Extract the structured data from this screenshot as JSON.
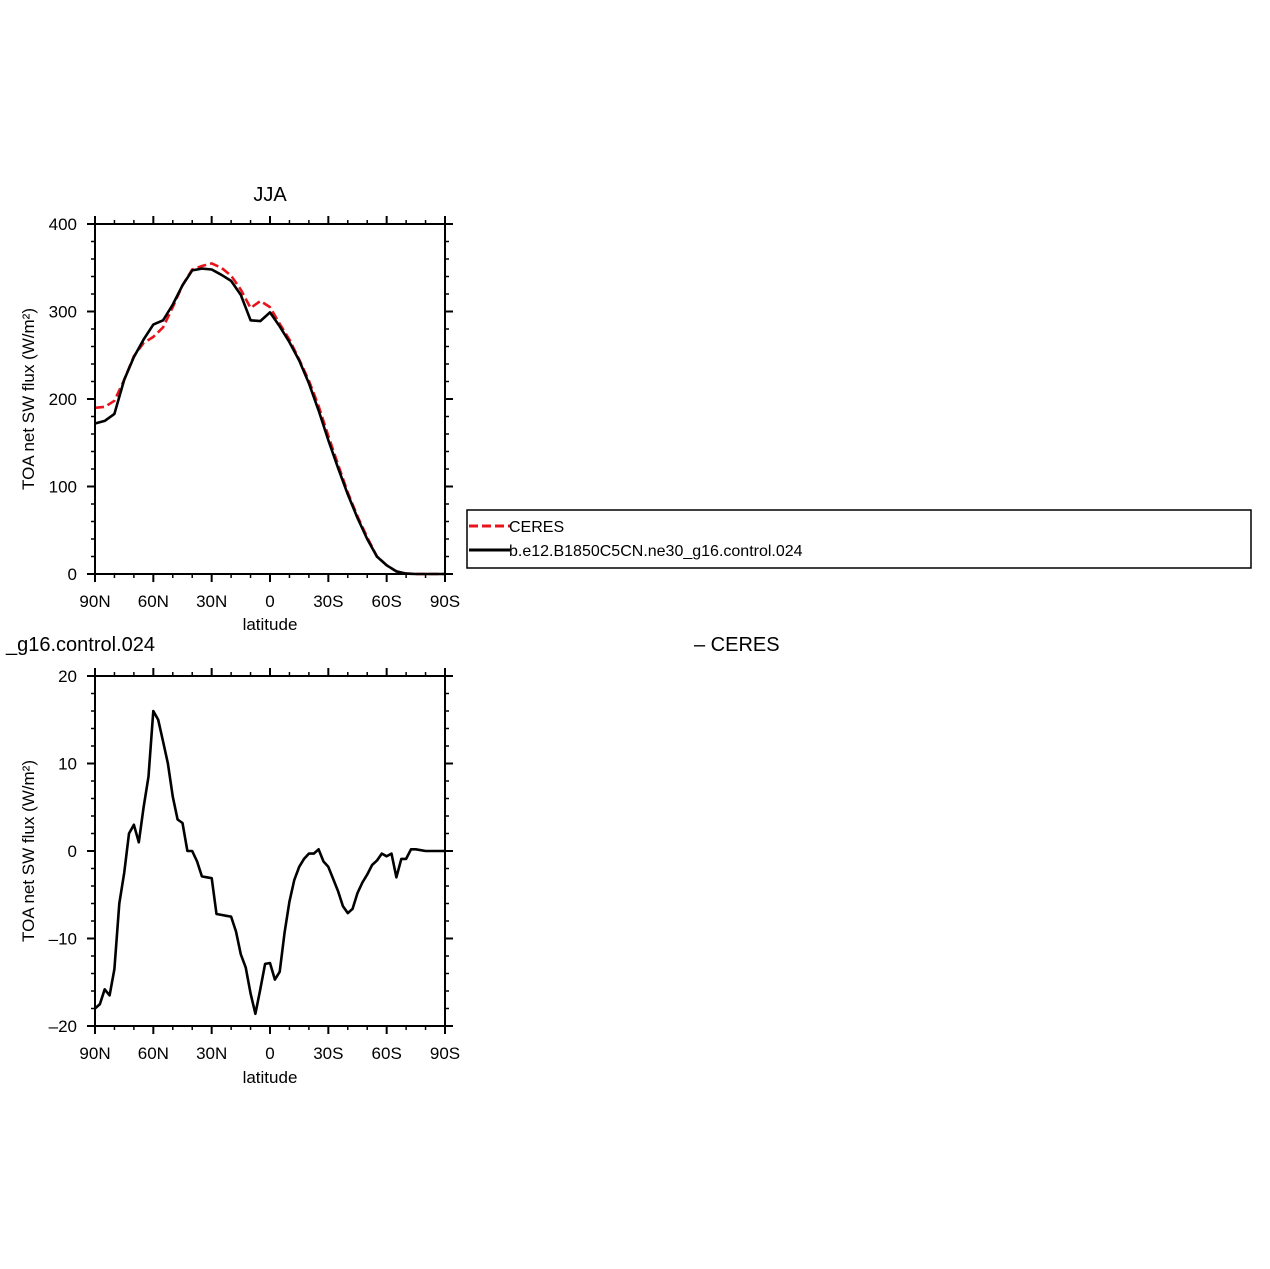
{
  "chart_data": [
    {
      "type": "line",
      "title": "JJA",
      "xlabel": "latitude",
      "ylabel": "TOA net SW flux (W/m²)",
      "x_axis": {
        "min": 90,
        "max": -90,
        "ticks": [
          90,
          60,
          30,
          0,
          -30,
          -60,
          -90
        ],
        "tick_labels": [
          "90N",
          "60N",
          "30N",
          "0",
          "30S",
          "60S",
          "90S"
        ]
      },
      "y_axis": {
        "min": 0,
        "max": 400,
        "ticks": [
          0,
          100,
          200,
          300,
          400
        ],
        "tick_labels": [
          "0",
          "100",
          "200",
          "300",
          "400"
        ]
      },
      "grid": false,
      "legend": {
        "placement": "right, outside plot",
        "entries": [
          "CERES",
          "b.e12.B1850C5CN.ne30_g16.control.024"
        ]
      },
      "series": [
        {
          "name": "CERES",
          "color": "#e8141c",
          "dashed": true,
          "x": [
            90,
            85,
            80,
            75,
            70,
            65,
            60,
            55,
            50,
            45,
            40,
            35,
            30,
            25,
            20,
            15,
            10,
            5,
            0,
            -5,
            -10,
            -15,
            -20,
            -25,
            -30,
            -35,
            -40,
            -45,
            -50,
            -55,
            -60,
            -65,
            -70,
            -75,
            -80,
            -85,
            -90
          ],
          "values": [
            190,
            191,
            198,
            222,
            249,
            264,
            271,
            282,
            305,
            330,
            348,
            352,
            355,
            350,
            341,
            325,
            304,
            312,
            305,
            286,
            268,
            245,
            221,
            192,
            158,
            125,
            93,
            66,
            42,
            20,
            10,
            3,
            0.5,
            0,
            0,
            0,
            0
          ]
        },
        {
          "name": "b.e12.B1850C5CN.ne30_g16.control.024",
          "color": "#000000",
          "dashed": false,
          "x": [
            90,
            85,
            80,
            75,
            70,
            65,
            60,
            55,
            50,
            45,
            40,
            35,
            30,
            25,
            20,
            15,
            10,
            5,
            0,
            -5,
            -10,
            -15,
            -20,
            -25,
            -30,
            -35,
            -40,
            -45,
            -50,
            -55,
            -60,
            -65,
            -70,
            -75,
            -80,
            -85,
            -90
          ],
          "values": [
            172,
            175,
            183,
            222,
            248,
            268,
            285,
            290,
            308,
            330,
            347,
            349,
            348,
            342,
            335,
            319,
            290,
            289,
            299,
            283,
            265,
            244,
            218,
            187,
            153,
            121,
            91,
            64,
            40,
            20,
            10,
            3,
            0.5,
            0,
            0,
            0,
            0
          ]
        }
      ]
    },
    {
      "type": "line",
      "title": "_g16.control.024",
      "title_right": "– CERES",
      "xlabel": "latitude",
      "ylabel": "TOA net SW flux (W/m²)",
      "x_axis": {
        "min": 90,
        "max": -90,
        "ticks": [
          90,
          60,
          30,
          0,
          -30,
          -60,
          -90
        ],
        "tick_labels": [
          "90N",
          "60N",
          "30N",
          "0",
          "30S",
          "60S",
          "90S"
        ]
      },
      "y_axis": {
        "min": -20,
        "max": 20,
        "ticks": [
          -20,
          -10,
          0,
          10,
          20
        ],
        "tick_labels": [
          "–20",
          "–10",
          "0",
          "10",
          "20"
        ]
      },
      "grid": false,
      "series": [
        {
          "name": "",
          "color": "#000000",
          "dashed": false,
          "x": [
            90,
            87.5,
            85,
            82.5,
            80,
            77.5,
            75,
            72.5,
            70,
            67.5,
            65,
            62.5,
            60,
            57.5,
            55,
            52.5,
            50,
            47.5,
            45,
            42.5,
            40,
            37.5,
            35,
            32.5,
            30,
            27.5,
            25,
            22.5,
            20,
            17.5,
            15,
            12.5,
            10,
            7.5,
            5,
            2.5,
            0,
            -2.5,
            -5,
            -7.5,
            -10,
            -12.5,
            -15,
            -17.5,
            -20,
            -22.5,
            -25,
            -27.5,
            -30,
            -32.5,
            -35,
            -37.5,
            -40,
            -42.5,
            -45,
            -47.5,
            -50,
            -52.5,
            -55,
            -57.5,
            -60,
            -62.5,
            -65,
            -67.5,
            -70,
            -72.5,
            -75,
            -80,
            -85,
            -90
          ],
          "values": [
            -18,
            -17.5,
            -15.8,
            -16.5,
            -13.5,
            -6,
            -2.5,
            2,
            3,
            1,
            5,
            8.5,
            16,
            15,
            12.5,
            10,
            6.2,
            3.6,
            3.2,
            0,
            0,
            -1.2,
            -2.9,
            -3,
            -3.1,
            -7.2,
            -7.3,
            -7.4,
            -7.5,
            -9.2,
            -11.8,
            -13.3,
            -16.3,
            -18.6,
            -15.8,
            -12.9,
            -12.8,
            -14.7,
            -13.8,
            -9.3,
            -5.8,
            -3.3,
            -1.8,
            -0.9,
            -0.3,
            -0.3,
            0.2,
            -1.2,
            -1.8,
            -3.2,
            -4.6,
            -6.3,
            -7.1,
            -6.6,
            -4.8,
            -3.6,
            -2.7,
            -1.6,
            -1.1,
            -0.3,
            -0.6,
            -0.3,
            -3,
            -0.9,
            -0.9,
            0.2,
            0.2,
            0,
            0,
            0
          ]
        }
      ]
    }
  ]
}
